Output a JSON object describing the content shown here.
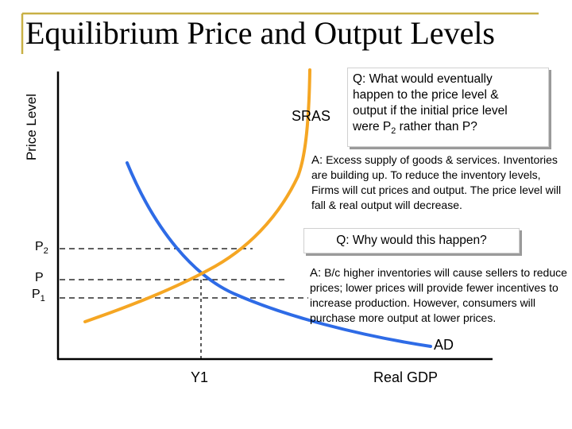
{
  "title": "Equilibrium Price and Output Levels",
  "axes": {
    "y_label": "Price Level",
    "x_label": "Real GDP",
    "x_tick": "Y1"
  },
  "price_labels": {
    "p2_main": "P",
    "p2_sub": "2",
    "p": "P",
    "p1_main": "P",
    "p1_sub": "1"
  },
  "curves": {
    "sras": {
      "label": "SRAS",
      "color": "#F5A623"
    },
    "ad": {
      "label": "AD",
      "color": "#2E6BE6"
    }
  },
  "colors": {
    "frame_accent": "#C8B045",
    "axis": "#000000",
    "guide": "#000000"
  },
  "question1": {
    "line1": "Q: What would eventually",
    "line2": "happen to the price level &",
    "line3": "output if the initial price level",
    "line4_a": "were P",
    "line4_sub": "2",
    "line4_b": " rather than P?"
  },
  "answer1": {
    "lead": "A:",
    "text": " Excess supply of goods & services. Inventories are building up.  To reduce the inventory levels, Firms will cut prices and output. The price level will fall & real output will decrease."
  },
  "question2": "Q: Why would this happen?",
  "answer2": {
    "lead": "A:",
    "text": " B/c higher inventories will cause sellers to reduce prices; lower prices will provide fewer incentives to increase production.  However, consumers will purchase more output at lower prices."
  }
}
